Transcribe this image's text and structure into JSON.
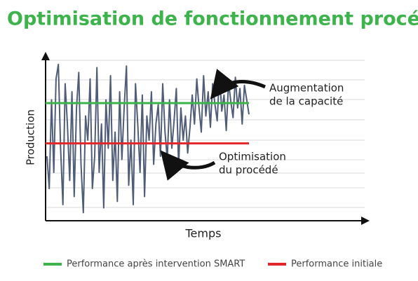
{
  "chart_data": {
    "type": "line",
    "title": "Optimisation de fonctionnement procédé",
    "x_label": "Temps",
    "y_label": "Production",
    "values": [
      40,
      20,
      75,
      30,
      88,
      97,
      45,
      10,
      85,
      60,
      25,
      80,
      15,
      70,
      92,
      35,
      5,
      65,
      50,
      88,
      20,
      40,
      95,
      30,
      60,
      8,
      75,
      45,
      90,
      25,
      55,
      12,
      80,
      38,
      70,
      96,
      22,
      50,
      10,
      85,
      60,
      30,
      78,
      15,
      65,
      50,
      80,
      35,
      60,
      72,
      40,
      85,
      55,
      38,
      75,
      45,
      62,
      82,
      34,
      70,
      50,
      65,
      42,
      58,
      78,
      60,
      88,
      70,
      55,
      90,
      65,
      80,
      58,
      85,
      72,
      62,
      91,
      68,
      78,
      56,
      86,
      74,
      64,
      89,
      70,
      82,
      60,
      84,
      75,
      66
    ],
    "color": "#4f5d78",
    "ylim": [
      0,
      100
    ],
    "reference_lines": [
      {
        "name": "Performance après intervention SMART",
        "color": "#3cb44b",
        "value": 73
      },
      {
        "name": "Performance initiale",
        "color": "#e3262a",
        "value": 48
      }
    ],
    "annotations": [
      [
        "Augmentation",
        "de la capacité"
      ],
      [
        "Optimisation",
        "du procédé"
      ]
    ]
  }
}
